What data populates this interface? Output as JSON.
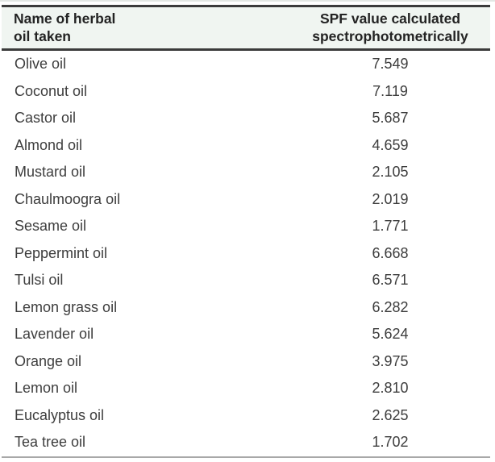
{
  "chart_data": {
    "type": "table",
    "title": "",
    "columns": [
      "Name of herbal oil taken",
      "SPF value calculated spectrophotometrically"
    ],
    "rows": [
      [
        "Olive oil",
        7.549
      ],
      [
        "Coconut oil",
        7.119
      ],
      [
        "Castor oil",
        5.687
      ],
      [
        "Almond oil",
        4.659
      ],
      [
        "Mustard oil",
        2.105
      ],
      [
        "Chaulmoogra oil",
        2.019
      ],
      [
        "Sesame oil",
        1.771
      ],
      [
        "Peppermint oil",
        6.668
      ],
      [
        "Tulsi oil",
        6.571
      ],
      [
        "Lemon grass oil",
        6.282
      ],
      [
        "Lavender oil",
        5.624
      ],
      [
        "Orange oil",
        3.975
      ],
      [
        "Lemon oil",
        2.81
      ],
      [
        "Eucalyptus oil",
        2.625
      ],
      [
        "Tea tree oil",
        1.702
      ]
    ]
  },
  "table": {
    "header": {
      "col1": "Name of herbal\noil taken",
      "col2": "SPF value calculated\nspectrophotometrically"
    },
    "rows": [
      {
        "name": "Olive oil",
        "value": "7.549"
      },
      {
        "name": "Coconut oil",
        "value": "7.119"
      },
      {
        "name": "Castor oil",
        "value": "5.687"
      },
      {
        "name": "Almond oil",
        "value": "4.659"
      },
      {
        "name": "Mustard oil",
        "value": "2.105"
      },
      {
        "name": "Chaulmoogra oil",
        "value": "2.019"
      },
      {
        "name": "Sesame oil",
        "value": "1.771"
      },
      {
        "name": "Peppermint oil",
        "value": "6.668"
      },
      {
        "name": "Tulsi oil",
        "value": "6.571"
      },
      {
        "name": "Lemon grass oil",
        "value": "6.282"
      },
      {
        "name": "Lavender oil",
        "value": "5.624"
      },
      {
        "name": "Orange oil",
        "value": "3.975"
      },
      {
        "name": "Lemon oil",
        "value": "2.810"
      },
      {
        "name": "Eucalyptus oil",
        "value": "2.625"
      },
      {
        "name": "Tea tree oil",
        "value": "1.702"
      }
    ]
  },
  "colors": {
    "header_bg": "#f0f5f1",
    "rule_dark": "#3b3b3b",
    "rule_light": "#a8a8a8",
    "row_text": "#3d3d3d",
    "header_text": "#232323"
  }
}
